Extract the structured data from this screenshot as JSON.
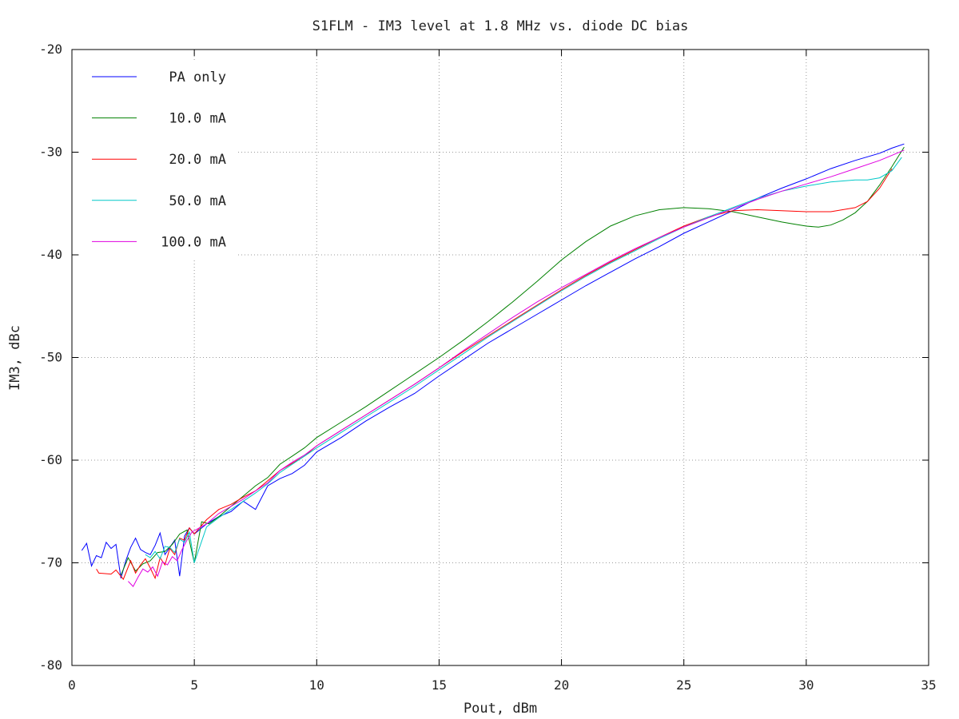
{
  "chart_data": {
    "type": "line",
    "title": "S1FLM - IM3 level at 1.8 MHz vs. diode DC bias",
    "xlabel": "Pout, dBm",
    "ylabel": "IM3, dBc",
    "xlim": [
      0,
      35
    ],
    "ylim": [
      -80,
      -20
    ],
    "xticks": [
      0,
      5,
      10,
      15,
      20,
      25,
      30,
      35
    ],
    "yticks": [
      -80,
      -70,
      -60,
      -50,
      -40,
      -30,
      -20
    ],
    "grid": true,
    "legend_position": "top-left",
    "series": [
      {
        "name": "PA only",
        "color": "#0000ff",
        "x": [
          0.4,
          0.6,
          0.8,
          1.0,
          1.2,
          1.4,
          1.6,
          1.8,
          2.0,
          2.2,
          2.4,
          2.6,
          2.8,
          3.0,
          3.2,
          3.4,
          3.6,
          3.8,
          4.0,
          4.2,
          4.4,
          4.6,
          4.8,
          5.0,
          5.5,
          6.0,
          6.5,
          7.0,
          7.5,
          8.0,
          8.5,
          9.0,
          9.5,
          10.0,
          11.0,
          12.0,
          13.0,
          14.0,
          15.0,
          16.0,
          17.0,
          18.0,
          19.0,
          20.0,
          21.0,
          22.0,
          23.0,
          24.0,
          25.0,
          26.0,
          27.0,
          28.0,
          29.0,
          30.0,
          31.0,
          32.0,
          33.0,
          33.5,
          34.0
        ],
        "values": [
          -68.8,
          -68.1,
          -70.3,
          -69.3,
          -69.5,
          -68.0,
          -68.6,
          -68.2,
          -71.5,
          -69.8,
          -68.5,
          -67.6,
          -68.7,
          -69.0,
          -69.2,
          -68.3,
          -67.1,
          -69.2,
          -68.5,
          -67.8,
          -71.3,
          -67.4,
          -66.6,
          -67.2,
          -66.2,
          -65.5,
          -65.0,
          -64.0,
          -64.8,
          -62.5,
          -61.8,
          -61.3,
          -60.5,
          -59.2,
          -57.8,
          -56.2,
          -54.8,
          -53.5,
          -51.8,
          -50.2,
          -48.6,
          -47.2,
          -45.8,
          -44.4,
          -43.0,
          -41.7,
          -40.4,
          -39.2,
          -37.9,
          -36.8,
          -35.7,
          -34.5,
          -33.5,
          -32.6,
          -31.6,
          -30.8,
          -30.1,
          -29.6,
          -29.2
        ]
      },
      {
        "name": "10.0 mA",
        "color": "#008000",
        "x": [
          2.0,
          2.3,
          2.6,
          2.9,
          3.2,
          3.5,
          3.8,
          4.1,
          4.4,
          4.7,
          5.0,
          5.3,
          5.6,
          6.0,
          6.5,
          7.0,
          7.5,
          8.0,
          8.5,
          9.0,
          9.5,
          10.0,
          11.0,
          12.0,
          13.0,
          14.0,
          15.0,
          16.0,
          17.0,
          18.0,
          19.0,
          20.0,
          21.0,
          22.0,
          23.0,
          24.0,
          25.0,
          26.0,
          27.0,
          28.0,
          29.0,
          29.5,
          30.0,
          30.5,
          31.0,
          31.5,
          32.0,
          32.5,
          33.0,
          33.5,
          34.0
        ],
        "values": [
          -71.2,
          -69.5,
          -70.8,
          -70.1,
          -69.8,
          -69.0,
          -68.9,
          -68.2,
          -67.2,
          -66.8,
          -70.0,
          -66.0,
          -66.2,
          -65.5,
          -64.5,
          -63.5,
          -62.5,
          -61.7,
          -60.4,
          -59.6,
          -58.8,
          -57.8,
          -56.3,
          -54.8,
          -53.2,
          -51.6,
          -50.0,
          -48.3,
          -46.5,
          -44.6,
          -42.6,
          -40.5,
          -38.7,
          -37.2,
          -36.2,
          -35.6,
          -35.4,
          -35.5,
          -35.8,
          -36.3,
          -36.8,
          -37.0,
          -37.2,
          -37.3,
          -37.1,
          -36.6,
          -35.9,
          -34.8,
          -33.2,
          -31.4,
          -29.5
        ]
      },
      {
        "name": "20.0 mA",
        "color": "#ff0000",
        "x": [
          1.0,
          1.1,
          1.6,
          1.8,
          2.1,
          2.4,
          2.6,
          2.8,
          3.0,
          3.2,
          3.4,
          3.6,
          3.8,
          4.0,
          4.2,
          4.4,
          4.6,
          4.8,
          5.0,
          5.5,
          6.0,
          6.5,
          7.0,
          7.5,
          8.0,
          8.5,
          9.0,
          9.5,
          10.0,
          11.0,
          12.0,
          13.0,
          14.0,
          15.0,
          16.0,
          17.0,
          18.0,
          19.0,
          20.0,
          21.0,
          22.0,
          23.0,
          24.0,
          25.0,
          26.0,
          27.0,
          28.0,
          29.0,
          30.0,
          31.0,
          32.0,
          32.5,
          33.0,
          33.5
        ],
        "values": [
          -70.6,
          -71.0,
          -71.1,
          -70.7,
          -71.6,
          -69.8,
          -71.0,
          -70.2,
          -69.6,
          -70.5,
          -71.5,
          -69.5,
          -70.2,
          -68.6,
          -69.2,
          -67.6,
          -67.8,
          -66.6,
          -67.2,
          -65.8,
          -64.8,
          -64.3,
          -63.6,
          -63.0,
          -62.0,
          -61.0,
          -60.3,
          -59.6,
          -58.6,
          -57.1,
          -55.6,
          -54.1,
          -52.6,
          -51.0,
          -49.4,
          -47.9,
          -46.4,
          -44.9,
          -43.4,
          -42.0,
          -40.7,
          -39.5,
          -38.3,
          -37.2,
          -36.3,
          -35.7,
          -35.6,
          -35.7,
          -35.8,
          -35.8,
          -35.4,
          -34.8,
          -33.5,
          -31.6
        ]
      },
      {
        "name": "50.0 mA",
        "color": "#00c8c8",
        "x": [
          3.0,
          3.2,
          3.4,
          3.6,
          3.8,
          4.0,
          4.2,
          4.4,
          4.6,
          4.8,
          5.0,
          5.5,
          6.0,
          6.5,
          7.0,
          7.5,
          8.0,
          8.5,
          9.0,
          9.5,
          10.0,
          11.0,
          12.0,
          13.0,
          14.0,
          15.0,
          16.0,
          17.0,
          18.0,
          19.0,
          20.0,
          21.0,
          22.0,
          23.0,
          24.0,
          25.0,
          26.0,
          27.0,
          28.0,
          29.0,
          30.0,
          31.0,
          32.0,
          32.5,
          33.0,
          33.5,
          33.9
        ],
        "values": [
          -69.2,
          -69.5,
          -68.9,
          -69.6,
          -68.4,
          -68.5,
          -69.0,
          -67.7,
          -68.0,
          -67.0,
          -70.0,
          -66.5,
          -65.6,
          -64.8,
          -64.0,
          -63.2,
          -62.3,
          -61.2,
          -60.4,
          -59.6,
          -58.8,
          -57.3,
          -55.8,
          -54.3,
          -52.8,
          -51.2,
          -49.6,
          -48.0,
          -46.5,
          -45.0,
          -43.5,
          -42.1,
          -40.8,
          -39.6,
          -38.4,
          -37.3,
          -36.3,
          -35.4,
          -34.5,
          -33.8,
          -33.3,
          -32.9,
          -32.7,
          -32.7,
          -32.5,
          -31.8,
          -30.5
        ]
      },
      {
        "name": "100.0 mA",
        "color": "#e000e0",
        "x": [
          2.3,
          2.5,
          2.7,
          2.9,
          3.1,
          3.3,
          3.5,
          3.7,
          3.9,
          4.1,
          4.3,
          4.5,
          4.7,
          4.9,
          5.2,
          5.5,
          6.0,
          6.5,
          7.0,
          7.5,
          8.0,
          8.5,
          9.0,
          9.5,
          10.0,
          11.0,
          12.0,
          13.0,
          14.0,
          15.0,
          16.0,
          17.0,
          18.0,
          19.0,
          20.0,
          21.0,
          22.0,
          23.0,
          24.0,
          25.0,
          26.0,
          27.0,
          28.0,
          29.0,
          30.0,
          31.0,
          32.0,
          33.0,
          33.5,
          34.0
        ],
        "values": [
          -71.8,
          -72.3,
          -71.4,
          -70.6,
          -70.9,
          -70.4,
          -71.3,
          -69.9,
          -70.2,
          -69.4,
          -69.8,
          -68.7,
          -67.8,
          -67.0,
          -66.6,
          -66.2,
          -65.2,
          -64.5,
          -63.8,
          -63.0,
          -62.2,
          -61.0,
          -60.2,
          -59.5,
          -58.6,
          -57.1,
          -55.6,
          -54.1,
          -52.6,
          -51.0,
          -49.3,
          -47.7,
          -46.1,
          -44.6,
          -43.2,
          -41.9,
          -40.6,
          -39.4,
          -38.3,
          -37.3,
          -36.4,
          -35.5,
          -34.6,
          -33.8,
          -33.1,
          -32.4,
          -31.6,
          -30.8,
          -30.3,
          -29.8
        ]
      }
    ]
  }
}
